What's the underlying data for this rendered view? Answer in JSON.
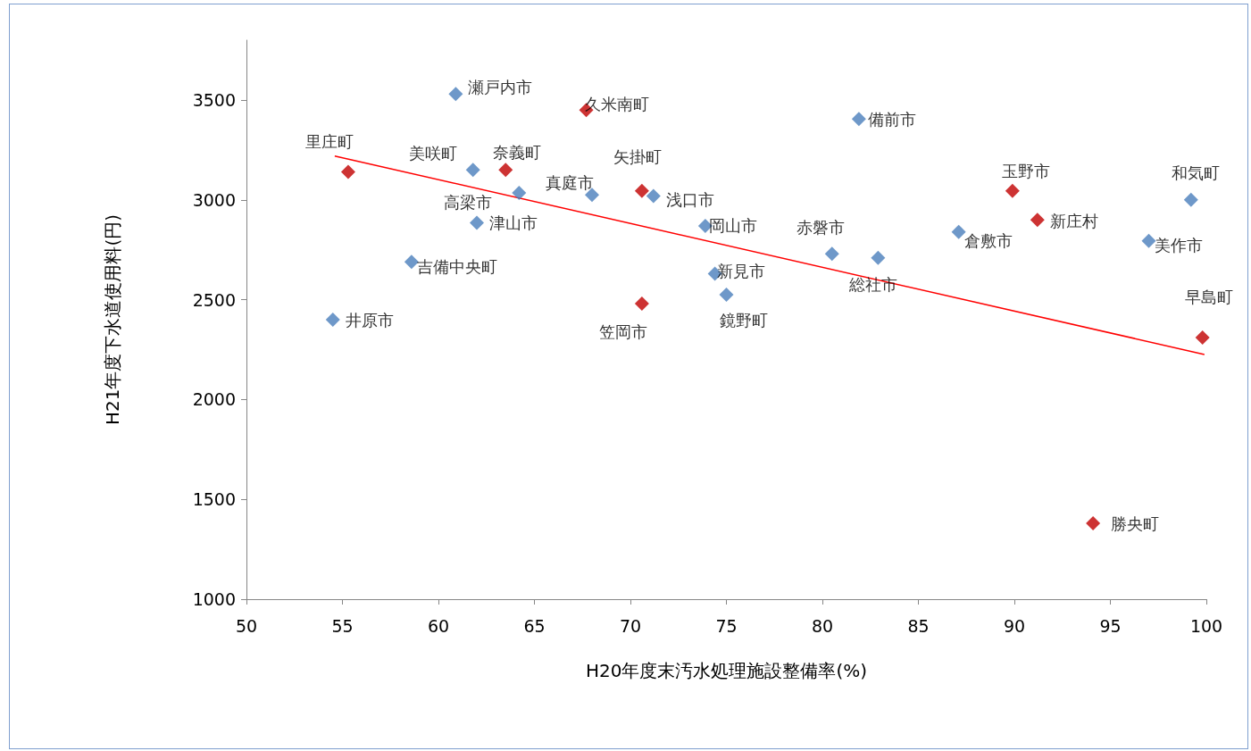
{
  "chart_data": {
    "type": "scatter",
    "xlabel": "H20年度末汚水処理施設整備率(%)",
    "ylabel": "H21年度下水道使用料(円)",
    "xlim": [
      50,
      100
    ],
    "xticks": [
      50,
      55,
      60,
      65,
      70,
      75,
      80,
      85,
      90,
      95,
      100
    ],
    "ylim": [
      1000,
      3800
    ],
    "yticks": [
      1000,
      1500,
      2000,
      2500,
      3000,
      3500
    ],
    "grid": false,
    "marker": "diamond",
    "series": [
      {
        "color": "#4a7ebb",
        "x": [
          60.9,
          81.9,
          61.8,
          64.2,
          68.0,
          71.2,
          62.0,
          73.9,
          58.6,
          80.5,
          82.9,
          87.1,
          99.2,
          97.0,
          74.4,
          75.0,
          54.5
        ],
        "values": [
          3530,
          3405,
          3150,
          3035,
          3025,
          3020,
          2885,
          2870,
          2690,
          2730,
          2710,
          2840,
          3000,
          2795,
          2630,
          2525,
          2400
        ]
      },
      {
        "color": "#c00000",
        "x": [
          55.3,
          63.5,
          67.7,
          70.6,
          70.6,
          89.9,
          91.2,
          99.8,
          94.1
        ],
        "values": [
          3140,
          3150,
          3450,
          3045,
          2480,
          3045,
          2900,
          2310,
          1380
        ]
      },
      {
        "type": "line",
        "color": "#ff0000",
        "marker": "none",
        "x": [
          54.6,
          99.9
        ],
        "values": [
          3220,
          2226
        ]
      }
    ],
    "annotations": [
      {
        "text": "瀬戸内市",
        "x": 60.9,
        "y": 3530
      },
      {
        "text": "備前市",
        "x": 81.9,
        "y": 3405
      },
      {
        "text": "美咲町",
        "x": 61.8,
        "y": 3150
      },
      {
        "text": "高梁市",
        "x": 64.2,
        "y": 3035
      },
      {
        "text": "真庭市",
        "x": 68.0,
        "y": 3025
      },
      {
        "text": "浅口市",
        "x": 71.2,
        "y": 3020
      },
      {
        "text": "津山市",
        "x": 62.0,
        "y": 2885
      },
      {
        "text": "岡山市",
        "x": 73.9,
        "y": 2870
      },
      {
        "text": "吉備中央町",
        "x": 58.6,
        "y": 2690
      },
      {
        "text": "赤磐市",
        "x": 80.5,
        "y": 2730
      },
      {
        "text": "総社市",
        "x": 82.9,
        "y": 2710
      },
      {
        "text": "倉敷市",
        "x": 87.1,
        "y": 2840
      },
      {
        "text": "和気町",
        "x": 99.2,
        "y": 3000
      },
      {
        "text": "美作市",
        "x": 97.0,
        "y": 2795
      },
      {
        "text": "新見市",
        "x": 74.4,
        "y": 2630
      },
      {
        "text": "鏡野町",
        "x": 75.0,
        "y": 2525
      },
      {
        "text": "井原市",
        "x": 54.5,
        "y": 2400
      },
      {
        "text": "里庄町",
        "x": 55.3,
        "y": 3140
      },
      {
        "text": "奈義町",
        "x": 63.5,
        "y": 3150
      },
      {
        "text": "久米南町",
        "x": 67.7,
        "y": 3450
      },
      {
        "text": "矢掛町",
        "x": 70.6,
        "y": 3045
      },
      {
        "text": "笠岡市",
        "x": 70.6,
        "y": 2480
      },
      {
        "text": "玉野市",
        "x": 89.9,
        "y": 3045
      },
      {
        "text": "新庄村",
        "x": 91.2,
        "y": 2900
      },
      {
        "text": "早島町",
        "x": 99.8,
        "y": 2310
      },
      {
        "text": "勝央町",
        "x": 94.1,
        "y": 1380
      }
    ]
  }
}
